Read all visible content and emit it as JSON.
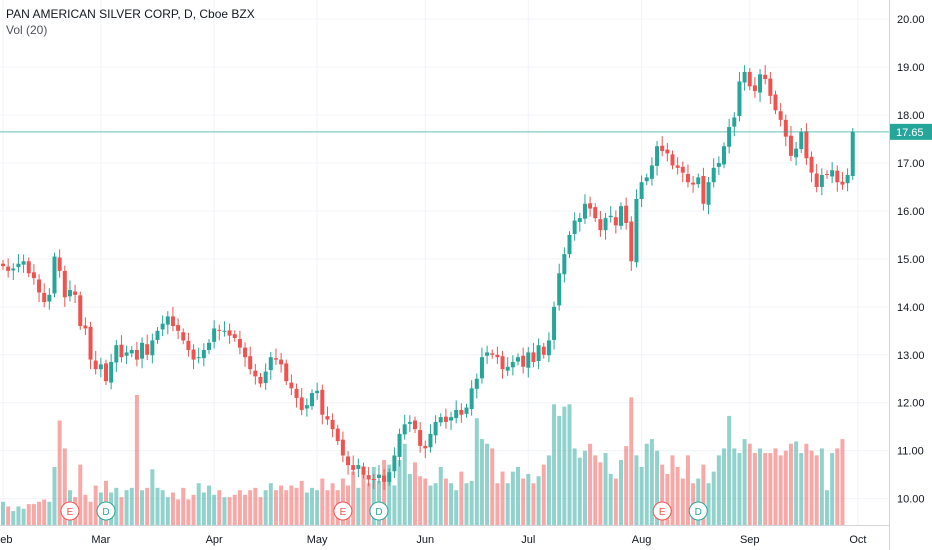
{
  "chart_data": {
    "type": "candlestick",
    "title": "PAN AMERICAN SILVER CORP, D, Cboe BZX",
    "volume_label": "Vol (20)",
    "last_price": 17.65,
    "ylim": [
      9.45,
      20.4
    ],
    "y_ticks": [
      "10.00",
      "11.00",
      "12.00",
      "13.00",
      "14.00",
      "15.00",
      "16.00",
      "17.00",
      "18.00",
      "19.00",
      "20.00"
    ],
    "x_tick_labels": [
      {
        "label": "Feb",
        "day": 0
      },
      {
        "label": "Mar",
        "day": 19
      },
      {
        "label": "Apr",
        "day": 41
      },
      {
        "label": "May",
        "day": 61
      },
      {
        "label": "Jun",
        "day": 82
      },
      {
        "label": "Jul",
        "day": 102
      },
      {
        "label": "Aug",
        "day": 124
      },
      {
        "label": "Sep",
        "day": 145
      },
      {
        "label": "Oct",
        "day": 166
      }
    ],
    "events": [
      {
        "label": "E",
        "day": 13,
        "color": "#ef5350"
      },
      {
        "label": "D",
        "day": 20,
        "color": "#26a69a"
      },
      {
        "label": "E",
        "day": 66,
        "color": "#ef5350"
      },
      {
        "label": "D",
        "day": 73,
        "color": "#26a69a"
      },
      {
        "label": "E",
        "day": 128,
        "color": "#ef5350"
      },
      {
        "label": "D",
        "day": 135,
        "color": "#26a69a"
      }
    ],
    "closes": [
      14.85,
      14.75,
      14.8,
      14.9,
      14.95,
      14.7,
      14.6,
      14.3,
      14.1,
      14.25,
      15.05,
      14.75,
      14.2,
      14.35,
      14.25,
      13.6,
      13.55,
      12.9,
      12.7,
      12.8,
      12.45,
      12.85,
      13.2,
      12.95,
      13.05,
      13.1,
      12.9,
      13.25,
      13.0,
      13.3,
      13.5,
      13.65,
      13.8,
      13.6,
      13.5,
      13.3,
      13.1,
      12.9,
      12.95,
      13.1,
      13.25,
      13.55,
      13.5,
      13.5,
      13.4,
      13.35,
      13.15,
      12.95,
      12.7,
      12.55,
      12.4,
      12.65,
      12.95,
      12.9,
      12.8,
      12.45,
      12.3,
      12.1,
      11.85,
      11.95,
      12.2,
      12.25,
      11.75,
      11.65,
      11.45,
      11.2,
      10.9,
      10.7,
      10.6,
      10.7,
      10.5,
      10.4,
      10.4,
      10.5,
      10.35,
      10.55,
      10.9,
      11.35,
      11.55,
      11.6,
      11.45,
      11.1,
      11.05,
      11.35,
      11.6,
      11.7,
      11.6,
      11.7,
      11.85,
      11.75,
      11.9,
      12.3,
      12.5,
      12.95,
      13.05,
      13.0,
      12.95,
      12.7,
      12.75,
      12.85,
      12.95,
      12.75,
      13.05,
      12.85,
      13.2,
      13.0,
      13.3,
      14.0,
      14.7,
      15.1,
      15.5,
      15.8,
      15.85,
      16.15,
      16.05,
      15.85,
      15.6,
      15.85,
      15.9,
      15.7,
      16.1,
      15.75,
      14.95,
      16.25,
      16.6,
      16.7,
      16.95,
      17.35,
      17.25,
      17.2,
      16.95,
      16.9,
      16.8,
      16.6,
      16.55,
      16.7,
      16.15,
      16.6,
      16.9,
      17.0,
      17.35,
      17.75,
      17.95,
      18.7,
      18.9,
      18.6,
      18.5,
      18.85,
      18.75,
      18.4,
      18.1,
      17.9,
      17.55,
      17.15,
      17.3,
      17.65,
      17.1,
      16.8,
      16.5,
      16.75,
      16.75,
      16.85,
      16.6,
      16.55,
      16.75,
      17.65
    ],
    "volumes": [
      1.0,
      0.8,
      0.6,
      0.8,
      0.7,
      0.9,
      0.9,
      1.0,
      1.1,
      1.0,
      2.5,
      4.5,
      3.3,
      1.5,
      1.2,
      2.6,
      1.3,
      1.0,
      1.7,
      1.4,
      1.9,
      1.4,
      1.6,
      1.2,
      1.5,
      1.6,
      5.6,
      1.5,
      1.6,
      2.4,
      1.6,
      1.5,
      1.2,
      1.4,
      1.1,
      1.6,
      1.1,
      1.3,
      1.8,
      1.4,
      1.7,
      1.3,
      1.5,
      1.2,
      1.2,
      1.3,
      1.5,
      1.3,
      1.5,
      1.6,
      1.2,
      1.5,
      1.8,
      1.5,
      1.7,
      1.5,
      1.7,
      1.6,
      1.9,
      1.4,
      1.6,
      1.5,
      2.0,
      1.5,
      1.8,
      1.5,
      2.0,
      1.7,
      2.3,
      1.6,
      2.3,
      1.8,
      2.5,
      1.9,
      2.8,
      2.6,
      1.7,
      2.8,
      3.5,
      2.2,
      2.7,
      2.1,
      2.0,
      1.7,
      1.8,
      2.5,
      2.0,
      1.8,
      1.5,
      2.3,
      1.8,
      1.9,
      4.6,
      3.7,
      3.5,
      3.3,
      1.8,
      2.3,
      1.8,
      2.3,
      2.5,
      2.0,
      2.2,
      1.8,
      2.1,
      2.6,
      3.0,
      5.2,
      4.7,
      5.1,
      5.2,
      3.3,
      2.9,
      3.2,
      3.5,
      3.0,
      2.7,
      3.1,
      2.2,
      2.0,
      2.8,
      3.4,
      5.5,
      3.0,
      2.5,
      3.5,
      3.7,
      3.2,
      2.6,
      2.2,
      3.0,
      2.5,
      2.0,
      3.0,
      1.8,
      2.0,
      2.6,
      1.8,
      2.3,
      3.0,
      3.3,
      4.7,
      3.3,
      3.1,
      3.7,
      3.5,
      3.1,
      3.3,
      3.1,
      3.1,
      3.3,
      3.0,
      3.2,
      3.5,
      3.6,
      3.1,
      3.5,
      3.2,
      3.0,
      3.3,
      1.5,
      3.1,
      3.3,
      3.7
    ]
  }
}
